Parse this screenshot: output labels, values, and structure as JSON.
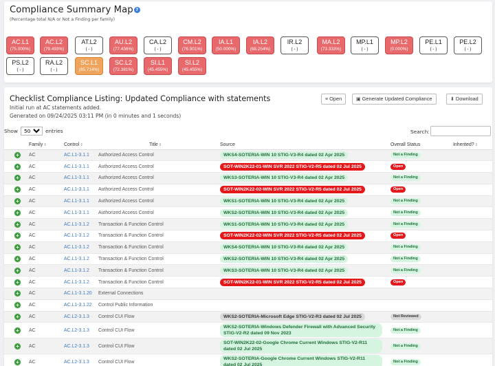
{
  "summary": {
    "title": "Compliance Summary Map",
    "subtitle": "(Percentage total N/A or Not a Finding per family)",
    "tiles": [
      {
        "name": "AC.L1",
        "pct": "(75.000%)",
        "color": "red"
      },
      {
        "name": "AC.L2",
        "pct": "(79.493%)",
        "color": "red"
      },
      {
        "name": "AT.L2",
        "pct": "( - )",
        "color": "white"
      },
      {
        "name": "AU.L2",
        "pct": "(77.436%)",
        "color": "red"
      },
      {
        "name": "CA.L2",
        "pct": "( - )",
        "color": "white"
      },
      {
        "name": "CM.L2",
        "pct": "(76.901%)",
        "color": "red"
      },
      {
        "name": "IA.L1",
        "pct": "(50.000%)",
        "color": "red"
      },
      {
        "name": "IA.L2",
        "pct": "(68.254%)",
        "color": "red"
      },
      {
        "name": "IR.L2",
        "pct": "( - )",
        "color": "white"
      },
      {
        "name": "MA.L2",
        "pct": "(73.333%)",
        "color": "red"
      },
      {
        "name": "MP.L1",
        "pct": "( - )",
        "color": "white"
      },
      {
        "name": "MP.L2",
        "pct": "(0.000%)",
        "color": "red"
      },
      {
        "name": "PE.L1",
        "pct": "( - )",
        "color": "white"
      },
      {
        "name": "PE.L2",
        "pct": "( - )",
        "color": "white"
      },
      {
        "name": "PS.L2",
        "pct": "( - )",
        "color": "white"
      },
      {
        "name": "RA.L2",
        "pct": "( - )",
        "color": "white"
      },
      {
        "name": "SC.L1",
        "pct": "(85.714%)",
        "color": "orange"
      },
      {
        "name": "SC.L2",
        "pct": "(72.381%)",
        "color": "red"
      },
      {
        "name": "SI.L1",
        "pct": "(45.455%)",
        "color": "red"
      },
      {
        "name": "SI.L2",
        "pct": "(45.455%)",
        "color": "red"
      }
    ]
  },
  "listing": {
    "title": "Checklist Compliance Listing: Updated Compliance with statements",
    "line1": "Initial run at AC statements added.",
    "line2": "Generated on 09/24/2025 03:11 PM (in 0 minutes and 1 seconds)",
    "buttons": {
      "open": "Open",
      "generate": "Generate Updated Compliance",
      "download": "Download"
    },
    "show_label": "Show",
    "entries_value": "50",
    "entries_label": "entries",
    "search_label": "Search:",
    "columns": {
      "family": "Family",
      "control": "Control",
      "title": "Title",
      "source": "Source",
      "status": "Overall Status",
      "inherited": "Inherited?"
    }
  },
  "rows": [
    {
      "family": "AC",
      "control": "AC.L1-3.1.1",
      "title": "Authorized Access Control",
      "source": "WKS4-SOTERIA-WIN 10 STIG-V3-R4 dated 02 Apr 2025",
      "src_color": "green",
      "status": "Not a Finding",
      "status_type": "ok"
    },
    {
      "family": "AC",
      "control": "AC.L1-3.1.1",
      "title": "Authorized Access Control",
      "source": "SOT-WIN2K22-01-WIN SVR 2022 STIG-V2-R5 dated 02 Jul 2025",
      "src_color": "red",
      "status": "Open",
      "status_type": "open"
    },
    {
      "family": "AC",
      "control": "AC.L1-3.1.1",
      "title": "Authorized Access Control",
      "source": "WKS3-SOTERIA-WIN 10 STIG-V3-R4 dated 02 Apr 2025",
      "src_color": "green",
      "status": "Not a Finding",
      "status_type": "ok"
    },
    {
      "family": "AC",
      "control": "AC.L1-3.1.1",
      "title": "Authorized Access Control",
      "source": "SOT-WIN2K22-02-WIN SVR 2022 STIG-V2-R5 dated 02 Jul 2025",
      "src_color": "red",
      "status": "Open",
      "status_type": "open"
    },
    {
      "family": "AC",
      "control": "AC.L1-3.1.1",
      "title": "Authorized Access Control",
      "source": "WKS1-SOTERIA-WIN 10 STIG-V3-R4 dated 02 Apr 2025",
      "src_color": "green",
      "status": "Not a Finding",
      "status_type": "ok"
    },
    {
      "family": "AC",
      "control": "AC.L1-3.1.1",
      "title": "Authorized Access Control",
      "source": "WKS2-SOTERIA-WIN 10 STIG-V3-R4 dated 02 Apr 2025",
      "src_color": "green",
      "status": "Not a Finding",
      "status_type": "ok"
    },
    {
      "family": "AC",
      "control": "AC.L1-3.1.2",
      "title": "Transaction & Function Control",
      "source": "WKS1-SOTERIA-WIN 10 STIG-V3-R4 dated 02 Apr 2025",
      "src_color": "green",
      "status": "Not a Finding",
      "status_type": "ok"
    },
    {
      "family": "AC",
      "control": "AC.L1-3.1.2",
      "title": "Transaction & Function Control",
      "source": "SOT-WIN2K22-02-WIN SVR 2022 STIG-V2-R5 dated 02 Jul 2025",
      "src_color": "red",
      "status": "Open",
      "status_type": "open"
    },
    {
      "family": "AC",
      "control": "AC.L1-3.1.2",
      "title": "Transaction & Function Control",
      "source": "WKS4-SOTERIA-WIN 10 STIG-V3-R4 dated 02 Apr 2025",
      "src_color": "green",
      "status": "Not a Finding",
      "status_type": "ok"
    },
    {
      "family": "AC",
      "control": "AC.L1-3.1.2",
      "title": "Transaction & Function Control",
      "source": "WKS2-SOTERIA-WIN 10 STIG-V3-R4 dated 02 Apr 2025",
      "src_color": "green",
      "status": "Not a Finding",
      "status_type": "ok"
    },
    {
      "family": "AC",
      "control": "AC.L1-3.1.2",
      "title": "Transaction & Function Control",
      "source": "WKS3-SOTERIA-WIN 10 STIG-V3-R4 dated 02 Apr 2025",
      "src_color": "green",
      "status": "Not a Finding",
      "status_type": "ok"
    },
    {
      "family": "AC",
      "control": "AC.L1-3.1.2",
      "title": "Transaction & Function Control",
      "source": "SOT-WIN2K22-01-WIN SVR 2022 STIG-V2-R5 dated 02 Jul 2025",
      "src_color": "red",
      "status": "Open",
      "status_type": "open"
    },
    {
      "family": "AC",
      "control": "AC.L1-3.1.20",
      "title": "External Connections",
      "source": "",
      "src_color": "",
      "status": "",
      "status_type": ""
    },
    {
      "family": "AC",
      "control": "AC.L1-3.1.22",
      "title": "Control Public Information",
      "source": "",
      "src_color": "",
      "status": "",
      "status_type": ""
    },
    {
      "family": "AC",
      "control": "AC.L2-3.1.3",
      "title": "Control CUI Flow",
      "source": "WKS2-SOTERIA-Microsoft Edge STIG-V2-R3 dated 02 Jul 2025",
      "src_color": "gray",
      "status": "Not Reviewed",
      "status_type": "nr"
    },
    {
      "family": "AC",
      "control": "AC.L2-3.1.3",
      "title": "Control CUI Flow",
      "source": "WKS2-SOTERIA-Windows Defender Firewall with Advanced Security STIG-V2-R2 dated 09 Nov 2023",
      "src_color": "green",
      "status": "Not a Finding",
      "status_type": "ok",
      "tall": true
    },
    {
      "family": "AC",
      "control": "AC.L2-3.1.3",
      "title": "Control CUI Flow",
      "source": "SOT-WIN2K22-02-Google Chrome Current Windows STIG-V2-R11 dated 02 Jul 2025",
      "src_color": "green",
      "status": "Not a Finding",
      "status_type": "ok",
      "tall": true
    },
    {
      "family": "AC",
      "control": "AC.L2-3.1.3",
      "title": "Control CUI Flow",
      "source": "WKS2-SOTERIA-Google Chrome Current Windows STIG-V2-R11 dated 02 Jul 2025",
      "src_color": "green",
      "status": "Not a Finding",
      "status_type": "ok",
      "tall": true
    }
  ]
}
